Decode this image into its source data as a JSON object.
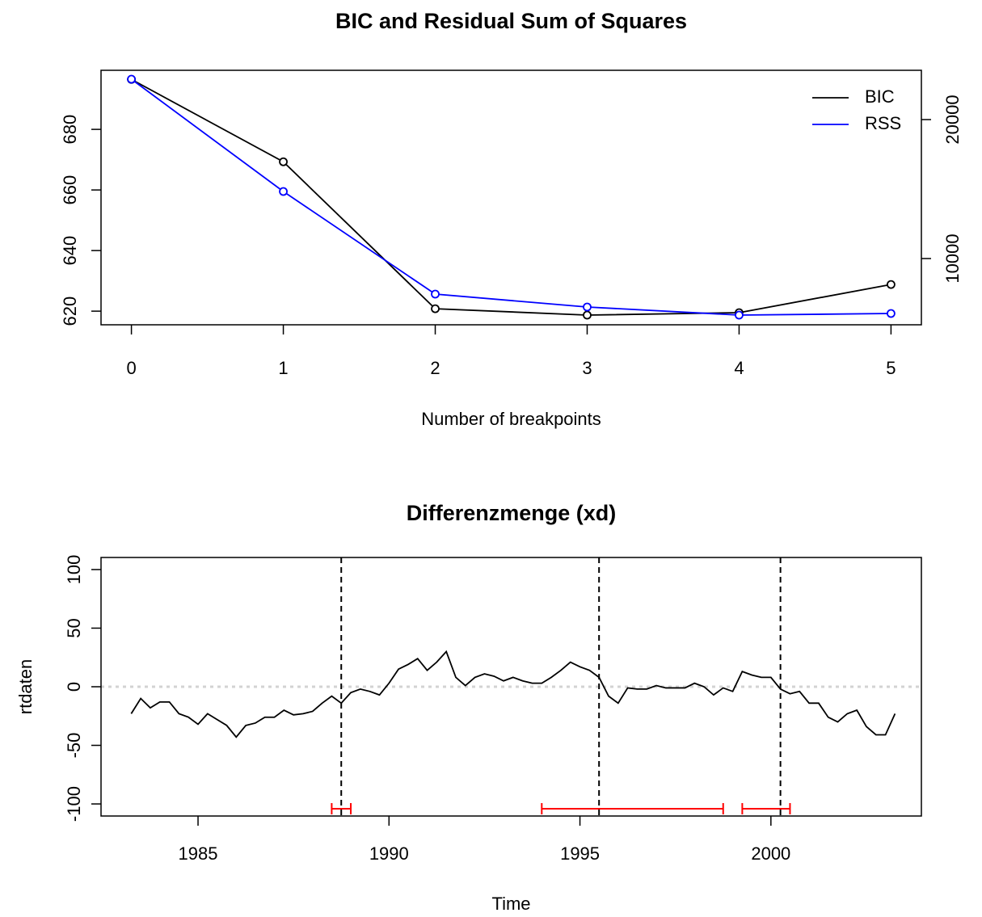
{
  "chart_data": [
    {
      "type": "line",
      "title": "BIC and Residual Sum of Squares",
      "xlabel": "Number of breakpoints",
      "x": [
        0,
        1,
        2,
        3,
        4,
        5
      ],
      "series": [
        {
          "name": "BIC",
          "color": "#000000",
          "values": [
            696.5,
            669.3,
            620.8,
            618.7,
            619.5,
            628.8
          ]
        },
        {
          "name": "RSS",
          "color": "#0000ff",
          "axis": "y2",
          "values": [
            22907,
            14826,
            7442,
            6512,
            5930,
            6047
          ]
        }
      ],
      "markers": true,
      "xlim": [
        -0.2,
        5.2
      ],
      "xticks": [
        0,
        1,
        2,
        3,
        4,
        5
      ],
      "ylim": [
        615.5,
        699.5
      ],
      "yticks": [
        620,
        640,
        660,
        680
      ],
      "y2lim": [
        5233,
        23547
      ],
      "y2ticks": [
        10000,
        20000
      ],
      "legend": "topright"
    },
    {
      "type": "line",
      "title": "Differenzmenge (xd)",
      "xlabel": "Time",
      "ylabel": "rtdaten",
      "x": [
        1983.25,
        1983.5,
        1983.75,
        1984,
        1984.25,
        1984.5,
        1984.75,
        1985,
        1985.25,
        1985.5,
        1985.75,
        1986,
        1986.25,
        1986.5,
        1986.75,
        1987,
        1987.25,
        1987.5,
        1987.75,
        1988,
        1988.25,
        1988.5,
        1988.75,
        1989,
        1989.25,
        1989.5,
        1989.75,
        1990,
        1990.25,
        1990.5,
        1990.75,
        1991,
        1991.25,
        1991.5,
        1991.75,
        1992,
        1992.25,
        1992.5,
        1992.75,
        1993,
        1993.25,
        1993.5,
        1993.75,
        1994,
        1994.25,
        1994.5,
        1994.75,
        1995,
        1995.25,
        1995.5,
        1995.75,
        1996,
        1996.25,
        1996.5,
        1996.75,
        1997,
        1997.25,
        1997.5,
        1997.75,
        1998,
        1998.25,
        1998.5,
        1998.75,
        1999,
        1999.25,
        1999.5,
        1999.75,
        2000,
        2000.25,
        2000.5,
        2000.75,
        2001,
        2001.25,
        2001.5,
        2001.75,
        2002,
        2002.25,
        2002.5,
        2002.75,
        2003,
        2003.25
      ],
      "series": [
        {
          "name": "rtdaten",
          "color": "#000000",
          "values": [
            -23,
            -10,
            -18,
            -13,
            -13,
            -23,
            -26,
            -32,
            -23,
            -28,
            -33,
            -43,
            -33,
            -31,
            -26,
            -26,
            -20,
            -24,
            -23,
            -21,
            -14,
            -8,
            -14,
            -5,
            -2,
            -4,
            -7,
            3,
            15,
            19,
            24,
            14,
            21,
            30,
            8,
            1,
            8,
            11,
            9,
            5,
            8,
            5,
            3,
            3,
            8,
            14,
            21,
            17,
            14,
            8,
            -8,
            -14,
            -1,
            -2,
            -2,
            1,
            -1,
            -1,
            -1,
            3,
            0,
            -7,
            -1,
            -4,
            13,
            10,
            8,
            8,
            -2,
            -6,
            -4,
            -14,
            -14,
            -26,
            -30,
            -23,
            -20,
            -34,
            -41,
            -41,
            -23
          ]
        }
      ],
      "markers": false,
      "reference_line": 0,
      "reference_color": "#d3d3d3",
      "breakpoints": [
        1988.75,
        1995.5,
        2000.25
      ],
      "intervals": [
        [
          1988.5,
          1989
        ],
        [
          1994,
          1998.75
        ],
        [
          1999.25,
          2000.5
        ]
      ],
      "interval_color": "#ff0000",
      "xlim": [
        1982.46,
        2003.94
      ],
      "xticks": [
        1985,
        1990,
        1995,
        2000
      ],
      "ylim": [
        -110.3,
        110.3
      ],
      "yticks": [
        -100,
        -50,
        0,
        50,
        100
      ]
    }
  ]
}
